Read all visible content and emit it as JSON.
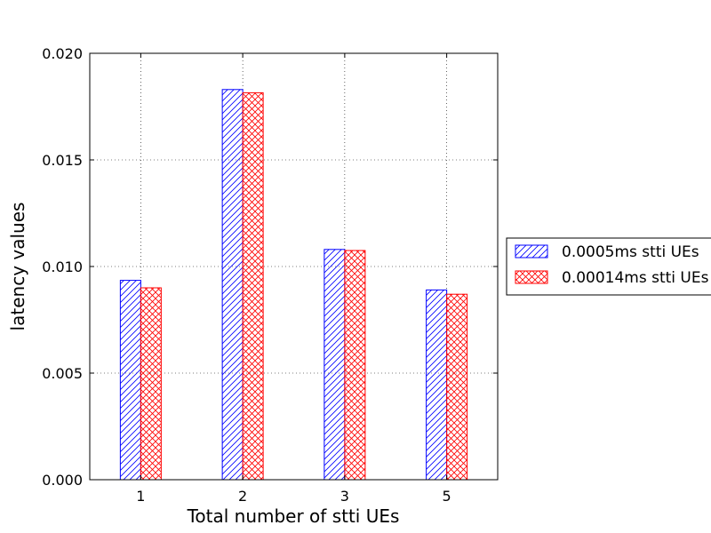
{
  "chart_data": {
    "type": "bar",
    "categories": [
      "1",
      "2",
      "3",
      "5"
    ],
    "series": [
      {
        "name": "0.0005ms stti UEs",
        "values": [
          0.00935,
          0.0183,
          0.0108,
          0.0089
        ],
        "color": "#0000ff",
        "hatch": "diagonal"
      },
      {
        "name": "0.00014ms stti UEs",
        "values": [
          0.009,
          0.01815,
          0.01075,
          0.0087
        ],
        "color": "#ff0000",
        "hatch": "crosshatch"
      }
    ],
    "xlabel": "Total number of stti UEs",
    "ylabel": "latency values",
    "ylim": [
      0,
      0.02
    ],
    "yticks": [
      "0.000",
      "0.005",
      "0.010",
      "0.015",
      "0.020"
    ],
    "grid": true,
    "legend_position": "outside-right"
  }
}
